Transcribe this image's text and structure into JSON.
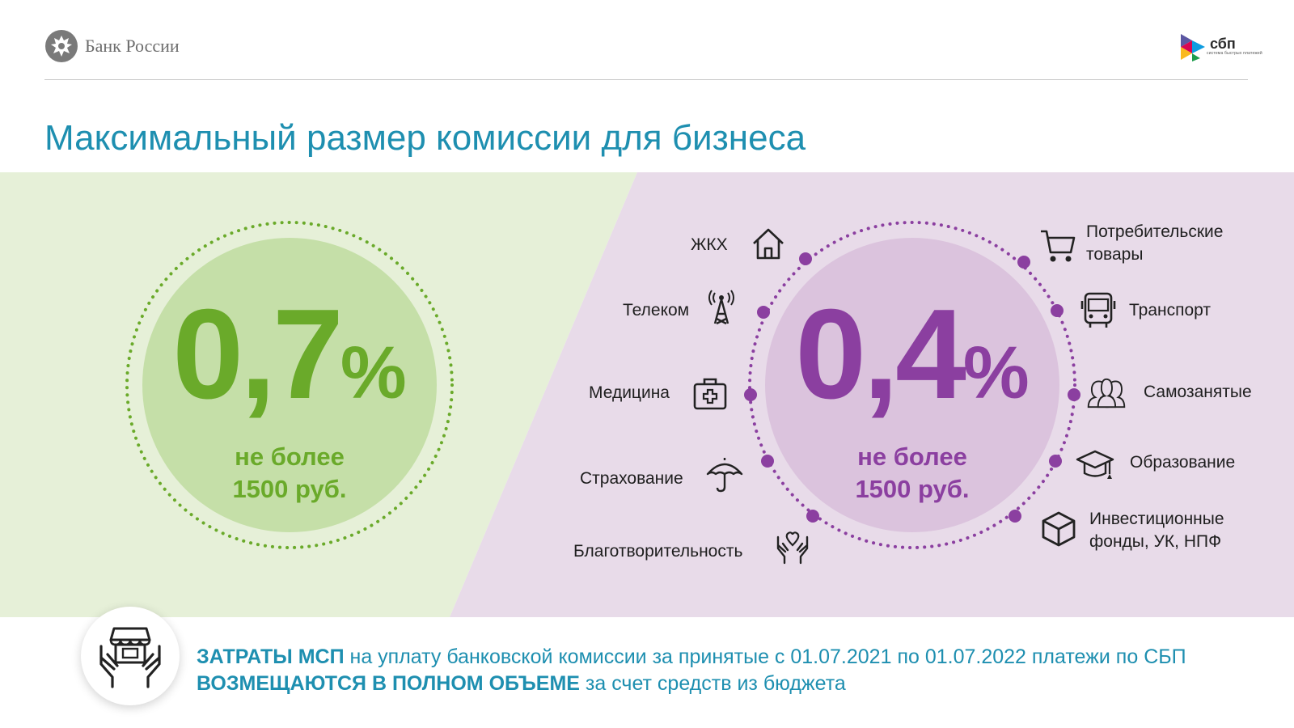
{
  "header": {
    "bank_name": "Банк России",
    "sbp_logo_text": "сбп",
    "sbp_logo_subtext": "система быстрых платежей"
  },
  "title": "Максимальный размер комиссии для бизнеса",
  "left_offer": {
    "rate_number": "0,7",
    "rate_sign": "%",
    "cap_line1": "не более",
    "cap_line2": "1500 руб."
  },
  "right_offer": {
    "rate_number": "0,4",
    "rate_sign": "%",
    "cap_line1": "не более",
    "cap_line2": "1500 руб.",
    "categories_left": [
      {
        "label": "ЖКХ",
        "icon": "house-icon"
      },
      {
        "label": "Телеком",
        "icon": "antenna-tower-icon"
      },
      {
        "label": "Медицина",
        "icon": "medical-kit-icon"
      },
      {
        "label": "Страхование",
        "icon": "umbrella-icon"
      },
      {
        "label": "Благотворительность",
        "icon": "heart-hands-icon"
      }
    ],
    "categories_right": [
      {
        "label_line1": "Потребительские",
        "label_line2": "товары",
        "icon": "shopping-cart-icon"
      },
      {
        "label_line1": "Транспорт",
        "icon": "bus-icon"
      },
      {
        "label_line1": "Самозанятые",
        "icon": "people-group-icon"
      },
      {
        "label_line1": "Образование",
        "icon": "graduation-cap-icon"
      },
      {
        "label_line1": "Инвестиционные",
        "label_line2": "фонды, УК, НПФ",
        "icon": "cube-icon"
      }
    ]
  },
  "footer": {
    "icon": "shop-in-hands-icon",
    "line1_bold": "ЗАТРАТЫ МСП",
    "line1_rest": " на уплату банковской комиссии за принятые с 01.07.2021 по 01.07.2022 платежи по СБП",
    "line2_bold": "ВОЗМЕЩАЮТСЯ В ПОЛНОМ ОБЪЕМЕ",
    "line2_rest": " за счет средств из бюджета"
  },
  "colors": {
    "title_blue": "#1e8fb0",
    "green": "#6aaa2a",
    "green_bg": "#e6f0d8",
    "purple": "#8b3fa0",
    "purple_bg": "#e8dbe9"
  }
}
